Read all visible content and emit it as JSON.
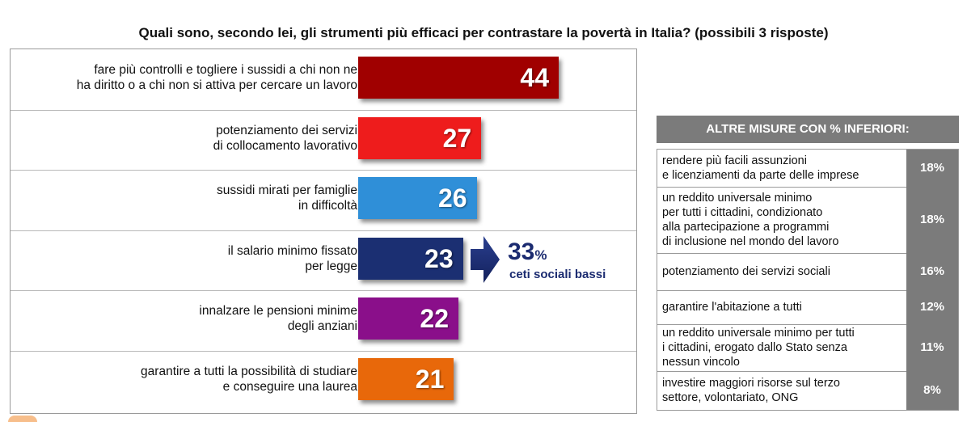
{
  "chart_data": {
    "type": "bar",
    "orientation": "horizontal",
    "title": "Quali sono, secondo lei, gli strumenti più efficaci per contrastare la povertà in Italia? (possibili 3 risposte)",
    "categories": [
      [
        "fare più controlli e togliere i sussidi a chi non ne",
        "ha diritto o a chi non si attiva per cercare un lavoro"
      ],
      [
        "potenziamento dei servizi",
        "di collocamento lavorativo"
      ],
      [
        "sussidi mirati per famiglie",
        "in difficoltà"
      ],
      [
        "il salario minimo fissato",
        "per legge"
      ],
      [
        "innalzare le pensioni minime",
        "degli anziani"
      ],
      [
        "garantire a tutti la possibilità di studiare",
        "e conseguire una laurea"
      ]
    ],
    "values": [
      44,
      27,
      26,
      23,
      22,
      21
    ],
    "value_labels": [
      "44",
      "27",
      "26",
      "23",
      "22",
      "21"
    ],
    "colors": [
      "#a00000",
      "#ee1c1c",
      "#2f8fd8",
      "#1b2f72",
      "#8a0f8a",
      "#e8680a"
    ],
    "xlim": [
      0,
      44
    ],
    "grid": false,
    "legend": "none",
    "annotation": {
      "category": "il salario minimo fissato per legge",
      "value": "33",
      "unit": "%",
      "text": "ceti sociali bassi",
      "color": "#1b2b70"
    },
    "side_table": {
      "header": "ALTRE MISURE CON % INFERIORI:",
      "rows": [
        {
          "lines": [
            "rendere più facili assunzioni",
            "e licenziamenti da parte delle imprese"
          ],
          "value": "18%"
        },
        {
          "lines": [
            "un reddito universale minimo",
            "per tutti i cittadini, condizionato",
            "alla partecipazione a programmi",
            "di inclusione nel mondo del lavoro"
          ],
          "value": "18%"
        },
        {
          "lines": [
            "potenziamento dei servizi sociali"
          ],
          "value": "16%"
        },
        {
          "lines": [
            "garantire l'abitazione a tutti"
          ],
          "value": "12%"
        },
        {
          "lines": [
            "un reddito universale minimo per tutti",
            "i cittadini, erogato dallo Stato senza",
            "nessun vincolo"
          ],
          "value": "11%"
        },
        {
          "lines": [
            "investire maggiori risorse sul terzo",
            "settore, volontariato, ONG"
          ],
          "value": "8%"
        }
      ]
    }
  }
}
